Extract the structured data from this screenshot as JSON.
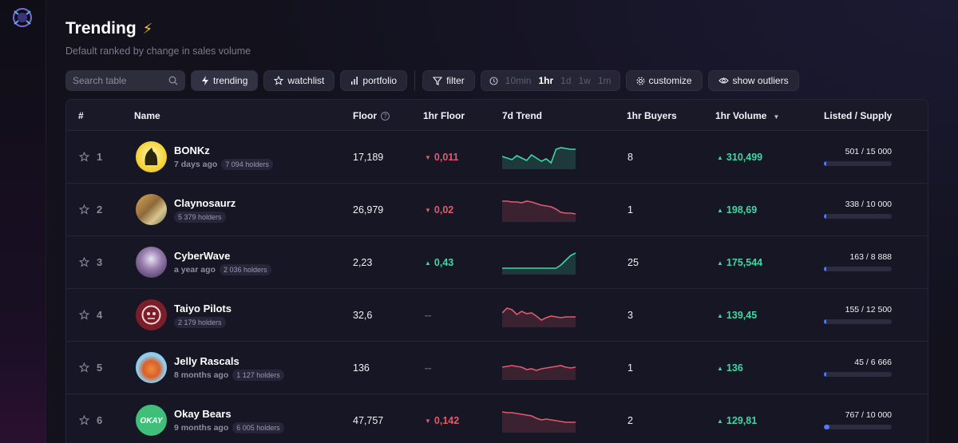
{
  "header": {
    "title": "Trending",
    "subtitle": "Default ranked by change in sales volume"
  },
  "toolbar": {
    "search_placeholder": "Search table",
    "trending_label": "trending",
    "watchlist_label": "watchlist",
    "portfolio_label": "portfolio",
    "filter_label": "filter",
    "time_options": [
      "10min",
      "1hr",
      "1d",
      "1w",
      "1m"
    ],
    "time_selected": "1hr",
    "customize_label": "customize",
    "outliers_label": "show outliers"
  },
  "columns": {
    "rank": "#",
    "name": "Name",
    "floor": "Floor",
    "floor_change": "1hr Floor",
    "trend": "7d Trend",
    "buyers": "1hr Buyers",
    "volume": "1hr Volume",
    "listed": "Listed / Supply"
  },
  "rows": [
    {
      "rank": "1",
      "name": "BONKz",
      "age": "7 days ago",
      "holders": "7 094 holders",
      "floor": "17,189",
      "floor_change": "0,011",
      "floor_dir": "down",
      "buyers": "8",
      "volume": "310,499",
      "listed": "501 / 15 000",
      "listed_fraction": 0.033,
      "trend": [
        14,
        16,
        18,
        13,
        16,
        19,
        12,
        16,
        20,
        17,
        22,
        5,
        3,
        4,
        5,
        5
      ],
      "trend_color": "#3fd7a5"
    },
    {
      "rank": "2",
      "name": "Claynosaurz",
      "age": "",
      "holders": "5 379 holders",
      "floor": "26,979",
      "floor_change": "0,02",
      "floor_dir": "down",
      "buyers": "1",
      "volume": "198,69",
      "listed": "338 / 10 000",
      "listed_fraction": 0.034,
      "trend": [
        4,
        4,
        5,
        5,
        6,
        4,
        5,
        7,
        9,
        10,
        11,
        14,
        18,
        19,
        19,
        20
      ],
      "trend_color": "#e05a6e"
    },
    {
      "rank": "3",
      "name": "CyberWave",
      "age": "a year ago",
      "holders": "2 036 holders",
      "floor": "2,23",
      "floor_change": "0,43",
      "floor_dir": "up",
      "buyers": "25",
      "volume": "175,544",
      "listed": "163 / 8 888",
      "listed_fraction": 0.018,
      "trend": [
        22,
        22,
        22,
        22,
        22,
        22,
        22,
        22,
        22,
        22,
        22,
        22,
        18,
        12,
        6,
        3
      ],
      "trend_color": "#3fd7a5"
    },
    {
      "rank": "4",
      "name": "Taiyo Pilots",
      "age": "",
      "holders": "2 179 holders",
      "floor": "32,6",
      "floor_change": "--",
      "floor_dir": "none",
      "buyers": "3",
      "volume": "139,45",
      "listed": "155 / 12 500",
      "listed_fraction": 0.012,
      "trend": [
        12,
        6,
        8,
        14,
        10,
        13,
        12,
        16,
        21,
        18,
        16,
        17,
        18,
        17,
        17,
        17
      ],
      "trend_color": "#e05a6e"
    },
    {
      "rank": "5",
      "name": "Jelly Rascals",
      "age": "8 months ago",
      "holders": "1 127 holders",
      "floor": "136",
      "floor_change": "--",
      "floor_dir": "none",
      "buyers": "1",
      "volume": "136",
      "listed": "45 / 6 666",
      "listed_fraction": 0.007,
      "trend": [
        14,
        13,
        12,
        13,
        14,
        17,
        16,
        18,
        16,
        15,
        14,
        13,
        12,
        14,
        15,
        14
      ],
      "trend_color": "#e05a6e"
    },
    {
      "rank": "6",
      "name": "Okay Bears",
      "age": "9 months ago",
      "holders": "6 005 holders",
      "floor": "47,757",
      "floor_change": "0,142",
      "floor_dir": "down",
      "buyers": "2",
      "volume": "129,81",
      "listed": "767 / 10 000",
      "listed_fraction": 0.077,
      "trend": [
        4,
        5,
        5,
        6,
        7,
        8,
        9,
        12,
        14,
        13,
        14,
        15,
        16,
        17,
        17,
        17
      ],
      "trend_color": "#e05a6e"
    }
  ]
}
